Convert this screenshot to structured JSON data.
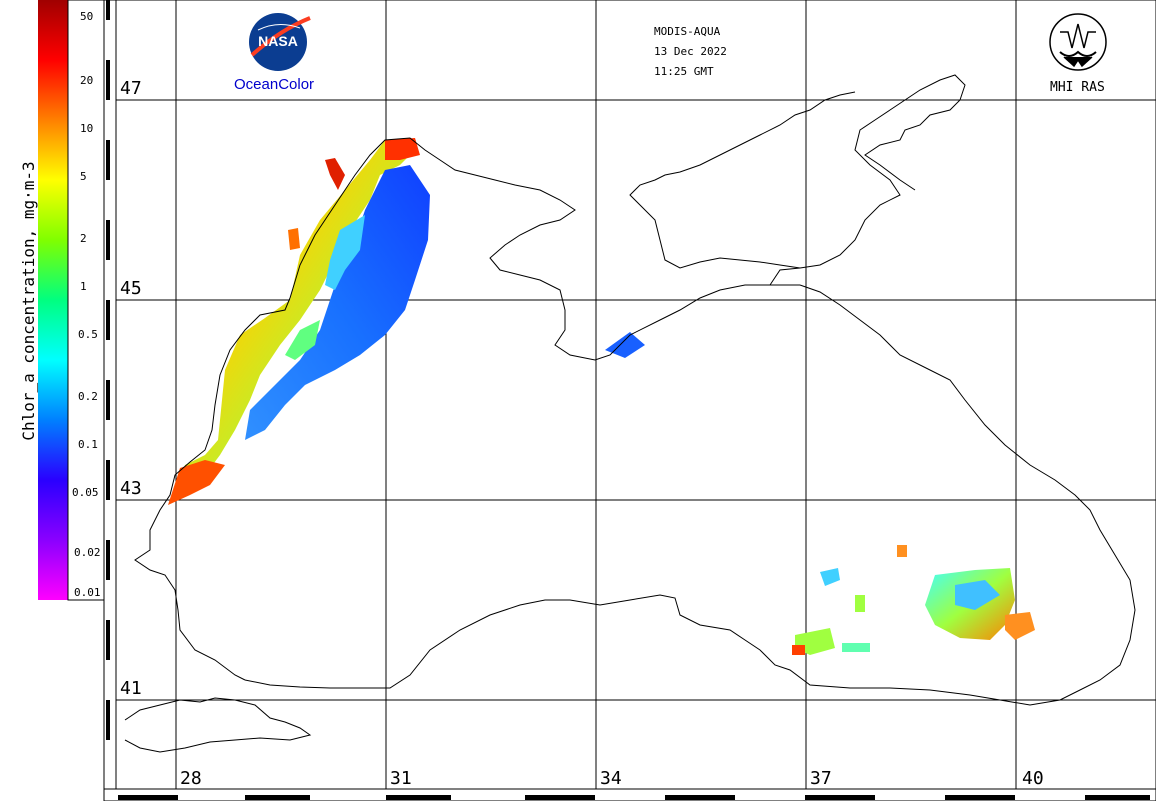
{
  "header": {
    "sensor": "MODIS-AQUA",
    "date": "13 Dec 2022",
    "time": "11:25 GMT"
  },
  "logos": {
    "nasa_text": "NASA",
    "oceancolor": "OceanColor",
    "mhi": "MHI RAS"
  },
  "colorbar": {
    "title": "Chlor_a concentration, mg·m-3",
    "ticks": [
      "50",
      "20",
      "10",
      "5",
      "2",
      "1",
      "0.5",
      "0.2",
      "0.1",
      "0.05",
      "0.02",
      "0.01"
    ],
    "colors": [
      "#ff00ff",
      "#8a00ff",
      "#2a00ff",
      "#0080ff",
      "#00ffff",
      "#00ff80",
      "#80ff00",
      "#ffff00",
      "#ff8000",
      "#ff0000",
      "#a00000"
    ]
  },
  "lat_labels": [
    "47",
    "45",
    "43",
    "41"
  ],
  "lon_labels": [
    "28",
    "31",
    "34",
    "37",
    "40"
  ],
  "colors": {
    "coast": "#000000",
    "grid": "#000000",
    "background": "#ffffff"
  }
}
